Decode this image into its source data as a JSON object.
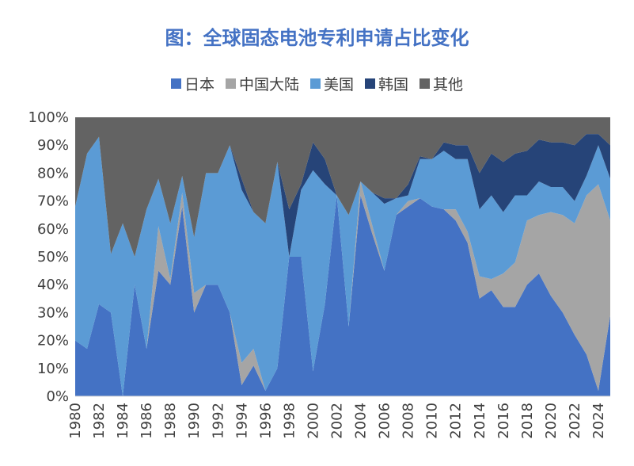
{
  "chart_data": {
    "type": "area",
    "stacked": "percent",
    "title": "图：全球固态电池专利申请占比变化",
    "x": [
      1980,
      1981,
      1982,
      1983,
      1984,
      1985,
      1986,
      1987,
      1988,
      1989,
      1990,
      1991,
      1992,
      1993,
      1994,
      1995,
      1996,
      1997,
      1998,
      1999,
      2000,
      2001,
      2002,
      2003,
      2004,
      2005,
      2006,
      2007,
      2008,
      2009,
      2010,
      2011,
      2012,
      2013,
      2014,
      2015,
      2016,
      2017,
      2018,
      2019,
      2020,
      2021,
      2022,
      2023,
      2024,
      2025
    ],
    "x_tick_labels": [
      "1980",
      "1982",
      "1984",
      "1986",
      "1988",
      "1990",
      "1992",
      "1994",
      "1996",
      "1998",
      "2000",
      "2002",
      "2004",
      "2006",
      "2008",
      "2010",
      "2012",
      "2014",
      "2016",
      "2018",
      "2020",
      "2022",
      "2024"
    ],
    "y_tick_labels": [
      "0%",
      "10%",
      "20%",
      "30%",
      "40%",
      "50%",
      "60%",
      "70%",
      "80%",
      "90%",
      "100%"
    ],
    "ylim": [
      0,
      100
    ],
    "legend_position": "top",
    "series": [
      {
        "name": "日本",
        "color": "#4472C4",
        "values": [
          20,
          17,
          33,
          30,
          0,
          40,
          17,
          45,
          40,
          68,
          30,
          40,
          40,
          30,
          4,
          11,
          2,
          10,
          50,
          50,
          9,
          33,
          72,
          25,
          72,
          58,
          45,
          65,
          68,
          71,
          68,
          67,
          63,
          55,
          35,
          38,
          32,
          32,
          40,
          44,
          36,
          30,
          22,
          15,
          2,
          29
        ]
      },
      {
        "name": "中国大陆",
        "color": "#A5A5A5",
        "values": [
          0,
          0,
          0,
          0,
          0,
          0,
          0,
          16,
          2,
          5,
          7,
          0,
          0,
          0,
          8,
          6,
          0,
          0,
          0,
          0,
          0,
          0,
          0,
          0,
          5,
          3,
          0,
          0,
          2,
          0,
          0,
          0,
          4,
          4,
          8,
          4,
          12,
          16,
          23,
          21,
          30,
          35,
          40,
          57,
          74,
          34
        ]
      },
      {
        "name": "美国",
        "color": "#5B9BD5",
        "values": [
          48,
          70,
          60,
          21,
          62,
          10,
          50,
          17,
          20,
          6,
          20,
          40,
          40,
          60,
          62,
          49,
          60,
          74,
          0,
          24,
          72,
          43,
          0,
          40,
          0,
          12,
          24,
          6,
          2,
          14,
          17,
          21,
          18,
          26,
          24,
          30,
          22,
          24,
          9,
          12,
          9,
          10,
          8,
          7,
          14,
          15
        ]
      },
      {
        "name": "韩国",
        "color": "#264478",
        "values": [
          0,
          0,
          0,
          0,
          0,
          0,
          0,
          0,
          0,
          0,
          0,
          0,
          0,
          0,
          4,
          0,
          0,
          0,
          17,
          2,
          10,
          9,
          0,
          0,
          0,
          0,
          2,
          0,
          4,
          1,
          0,
          3,
          5,
          5,
          13,
          15,
          18,
          15,
          16,
          15,
          16,
          16,
          20,
          15,
          4,
          12
        ]
      },
      {
        "name": "其他",
        "color": "#636363",
        "values": [
          32,
          13,
          7,
          49,
          38,
          50,
          33,
          22,
          38,
          21,
          43,
          20,
          20,
          10,
          22,
          34,
          38,
          16,
          33,
          24,
          9,
          15,
          28,
          35,
          23,
          27,
          29,
          29,
          24,
          14,
          15,
          9,
          10,
          10,
          20,
          13,
          16,
          13,
          12,
          8,
          9,
          9,
          10,
          6,
          6,
          10
        ]
      }
    ]
  }
}
